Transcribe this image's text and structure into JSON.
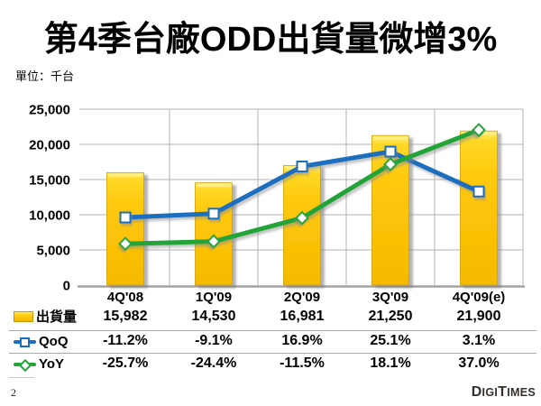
{
  "slide": {
    "title": "第4季台廠ODD出貨量微增3%",
    "unit_label": "單位：千台",
    "page_number": "2",
    "logo_text": "DIGITIMES"
  },
  "chart_data": {
    "type": "combo-bar-line",
    "title": "第4季台廠ODD出貨量微增3%",
    "ylabel": "單位：千台 (thousand units)",
    "categories": [
      "4Q'08",
      "1Q'09",
      "2Q'09",
      "3Q'09",
      "4Q'09(e)"
    ],
    "bar_series": {
      "name": "出貨量",
      "values": [
        15982,
        14530,
        16981,
        21250,
        21900
      ],
      "color": "#ffc40c"
    },
    "line_series": [
      {
        "name": "QoQ",
        "values_pct": [
          -11.2,
          -9.1,
          16.9,
          25.1,
          3.1
        ],
        "color": "#1b6ebe",
        "marker": "square"
      },
      {
        "name": "YoY",
        "values_pct": [
          -25.7,
          -24.4,
          -11.5,
          18.1,
          37.0
        ],
        "color": "#22a437",
        "marker": "diamond"
      }
    ],
    "ylim": [
      0,
      25000
    ],
    "ytick_labels": [
      "25,000",
      "20,000",
      "15,000",
      "10,000",
      "5,000",
      "0"
    ],
    "ytick_values": [
      25000,
      20000,
      15000,
      10000,
      5000,
      0
    ],
    "y2lim": [
      -48.5,
      48.5
    ],
    "grid": true,
    "legend_position": "table-left"
  },
  "table": {
    "header": [
      "4Q'08",
      "1Q'09",
      "2Q'09",
      "3Q'09",
      "4Q'09(e)"
    ],
    "rows": [
      {
        "label": "出貨量",
        "icon": "bar",
        "values": [
          "15,982",
          "14,530",
          "16,981",
          "21,250",
          "21,900"
        ]
      },
      {
        "label": "QoQ",
        "icon": "line-square",
        "values": [
          "-11.2%",
          "-9.1%",
          "16.9%",
          "25.1%",
          "3.1%"
        ]
      },
      {
        "label": "YoY",
        "icon": "line-diamond",
        "values": [
          "-25.7%",
          "-24.4%",
          "-11.5%",
          "18.1%",
          "37.0%"
        ]
      }
    ]
  },
  "colors": {
    "bar_fill": "#ffc40c",
    "bar_border": "#cc9f00",
    "qoq_line": "#1b6ebe",
    "yoy_line": "#22a437",
    "gridline": "#b3b3b3",
    "axis_line": "#a3a3a3",
    "separator": "#aaaaaa"
  }
}
